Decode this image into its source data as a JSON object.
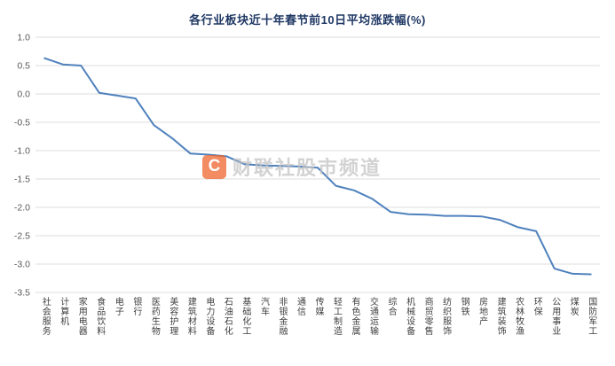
{
  "chart_data": {
    "type": "line",
    "title": "各行业板块近十年春节前10日平均涨跌幅(%)",
    "categories": [
      "社会服务",
      "计算机",
      "家用电器",
      "食品饮料",
      "电子",
      "银行",
      "医药生物",
      "美容护理",
      "建筑材料",
      "电力设备",
      "石油石化",
      "基础化工",
      "汽车",
      "非银金融",
      "通信",
      "传媒",
      "轻工制造",
      "有色金属",
      "交通运输",
      "综合",
      "机械设备",
      "商贸零售",
      "纺织服饰",
      "钢铁",
      "房地产",
      "建筑装饰",
      "农林牧渔",
      "环保",
      "公用事业",
      "煤炭",
      "国防军工"
    ],
    "values": [
      0.63,
      0.52,
      0.5,
      0.02,
      -0.03,
      -0.08,
      -0.55,
      -0.78,
      -1.05,
      -1.07,
      -1.1,
      -1.24,
      -1.26,
      -1.27,
      -1.28,
      -1.3,
      -1.62,
      -1.7,
      -1.85,
      -2.08,
      -2.12,
      -2.13,
      -2.15,
      -2.15,
      -2.16,
      -2.22,
      -2.35,
      -2.42,
      -3.08,
      -3.17,
      -3.18
    ],
    "yticks": [
      "1.0",
      "0.5",
      "0.0",
      "-0.5",
      "-1.0",
      "-1.5",
      "-2.0",
      "-2.5",
      "-3.0",
      "-3.5"
    ],
    "ylim": [
      -3.5,
      1.0
    ],
    "xlabel": "",
    "ylabel": "",
    "grid": true,
    "legend_position": "none",
    "line_color": "#4f81bd",
    "grid_color": "#dcdcdc",
    "ytick_color": "#595959",
    "title_color": "#1f3864"
  },
  "watermark": {
    "logo_letter": "C",
    "logo_color": "#f0652f",
    "text": "财联社股市频道",
    "text_color": "#c3c3c3"
  }
}
